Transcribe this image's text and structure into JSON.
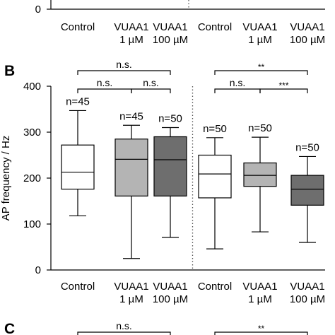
{
  "panel_labels": {
    "b": "B",
    "c": "C"
  },
  "colors": {
    "white": "#ffffff",
    "light_gray": "#b4b4b4",
    "dark_gray": "#6e6e6e",
    "black": "#000000"
  },
  "top_strip": {
    "tick_label": "0",
    "groups": [
      {
        "line1": "Control",
        "line2": ""
      },
      {
        "line1": "VUAA1",
        "line2": "1 µM"
      },
      {
        "line1": "VUAA1",
        "line2": "100 µM"
      },
      {
        "line1": "Control",
        "line2": ""
      },
      {
        "line1": "VUAA1",
        "line2": "1 µM"
      },
      {
        "line1": "VUAA1",
        "line2": "100 µM"
      }
    ]
  },
  "chart_data": {
    "type": "boxplot",
    "ylabel": "AP frequency / Hz",
    "ylim": [
      0,
      400
    ],
    "yticks": [
      0,
      100,
      200,
      300,
      400
    ],
    "categories": [
      {
        "line1": "Control",
        "line2": ""
      },
      {
        "line1": "VUAA1",
        "line2": "1 µM"
      },
      {
        "line1": "VUAA1",
        "line2": "100 µM"
      },
      {
        "line1": "Control",
        "line2": ""
      },
      {
        "line1": "VUAA1",
        "line2": "1 µM"
      },
      {
        "line1": "VUAA1",
        "line2": "100 µM"
      }
    ],
    "boxes": [
      {
        "n": "n=45",
        "min": 118,
        "q1": 176,
        "median": 213,
        "q3": 272,
        "max": 347,
        "color": "#ffffff"
      },
      {
        "n": "n=45",
        "min": 25,
        "q1": 161,
        "median": 241,
        "q3": 285,
        "max": 315,
        "color": "#b4b4b4"
      },
      {
        "n": "n=50",
        "min": 71,
        "q1": 161,
        "median": 240,
        "q3": 290,
        "max": 310,
        "color": "#6e6e6e"
      },
      {
        "n": "n=50",
        "min": 46,
        "q1": 157,
        "median": 209,
        "q3": 250,
        "max": 288,
        "color": "#ffffff"
      },
      {
        "n": "n=50",
        "min": 83,
        "q1": 182,
        "median": 206,
        "q3": 233,
        "max": 289,
        "color": "#b4b4b4"
      },
      {
        "n": "n=50",
        "min": 60,
        "q1": 141,
        "median": 176,
        "q3": 206,
        "max": 247,
        "color": "#6e6e6e"
      }
    ],
    "significance": [
      {
        "from": 0,
        "to": 2,
        "label": "n.s.",
        "level": 2
      },
      {
        "from": 0,
        "to": 1,
        "label": "n.s.",
        "level": 1
      },
      {
        "from": 1,
        "to": 2,
        "label": "n.s.",
        "level": 1
      },
      {
        "from": 3,
        "to": 5,
        "label": "**",
        "level": 2
      },
      {
        "from": 3,
        "to": 4,
        "label": "n.s.",
        "level": 1
      },
      {
        "from": 4,
        "to": 5,
        "label": "***",
        "level": 1
      }
    ],
    "divider_after_category": 2,
    "grid": false
  },
  "bottom_strip": {
    "brackets": [
      {
        "from": 0,
        "to": 2,
        "label": "n.s."
      },
      {
        "from": 3,
        "to": 5,
        "label": "**"
      }
    ]
  }
}
